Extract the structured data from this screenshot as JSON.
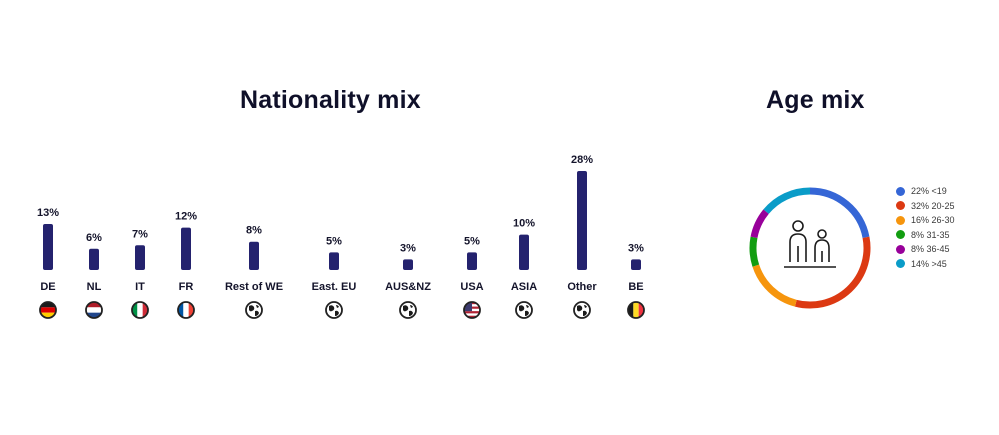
{
  "nationality": {
    "title": "Nationality mix",
    "chart_data": {
      "type": "bar",
      "categories": [
        "DE",
        "NL",
        "IT",
        "FR",
        "Rest of WE",
        "East. EU",
        "AUS&NZ",
        "USA",
        "ASIA",
        "Other",
        "BE"
      ],
      "values": [
        13,
        6,
        7,
        12,
        8,
        5,
        3,
        5,
        10,
        28,
        3
      ],
      "value_labels": [
        "13%",
        "6%",
        "7%",
        "12%",
        "8%",
        "5%",
        "3%",
        "5%",
        "10%",
        "28%",
        "3%"
      ],
      "icons": [
        "flag-de-icon",
        "flag-nl-icon",
        "flag-it-icon",
        "flag-fr-icon",
        "globe-icon",
        "globe-icon",
        "globe-icon",
        "flag-us-icon",
        "globe-icon",
        "globe-icon",
        "flag-be-icon"
      ],
      "bar_color": "#24226e",
      "grid": false,
      "ylim": [
        0,
        28
      ]
    }
  },
  "age": {
    "title": "Age mix",
    "chart_data": {
      "type": "pie",
      "categories": [
        "<19",
        "20-25",
        "26-30",
        "31-35",
        "36-45",
        ">45"
      ],
      "values": [
        22,
        32,
        16,
        8,
        8,
        14
      ],
      "legend": [
        "22% <19",
        "32% 20-25",
        "16% 26-30",
        "8% 31-35",
        "8% 36-45",
        "14% >45"
      ],
      "colors": [
        "#3566d6",
        "#dc3912",
        "#f6950d",
        "#129d11",
        "#98009a",
        "#0a9cc8"
      ],
      "legend_position": "right",
      "center_icon": "people-icon"
    }
  }
}
